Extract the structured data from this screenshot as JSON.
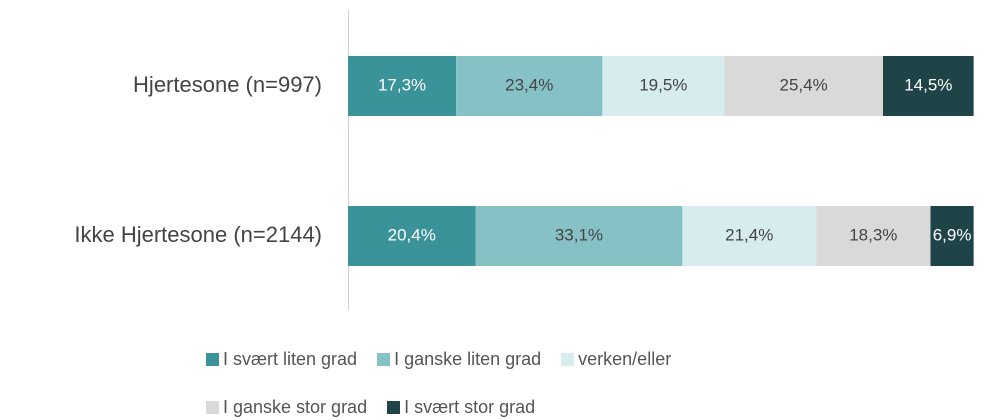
{
  "chart_data": {
    "type": "stacked-bar-horizontal",
    "categories": [
      "Hjertesone (n=997)",
      "Ikke Hjertesone (n=2144)"
    ],
    "xlim": [
      0,
      100
    ],
    "series": [
      {
        "name": "I svært liten grad",
        "color": "#3a9399",
        "values": [
          17.3,
          20.4
        ],
        "value_labels": [
          "17,3%",
          "20,4%"
        ]
      },
      {
        "name": "I ganske liten grad",
        "color": "#86c1c6",
        "values": [
          23.4,
          33.1
        ],
        "value_labels": [
          "23,4%",
          "33,1%"
        ]
      },
      {
        "name": "verken/eller",
        "color": "#d6ecee",
        "values": [
          19.5,
          21.4
        ],
        "value_labels": [
          "19,5%",
          "21,4%"
        ]
      },
      {
        "name": "I ganske stor grad",
        "color": "#d9d9d9",
        "values": [
          25.4,
          18.3
        ],
        "value_labels": [
          "25,4%",
          "18,3%"
        ]
      },
      {
        "name": "I svært stor grad",
        "color": "#1f4448",
        "values": [
          14.5,
          6.9
        ],
        "value_labels": [
          "14,5%",
          "6,9%"
        ]
      }
    ]
  }
}
